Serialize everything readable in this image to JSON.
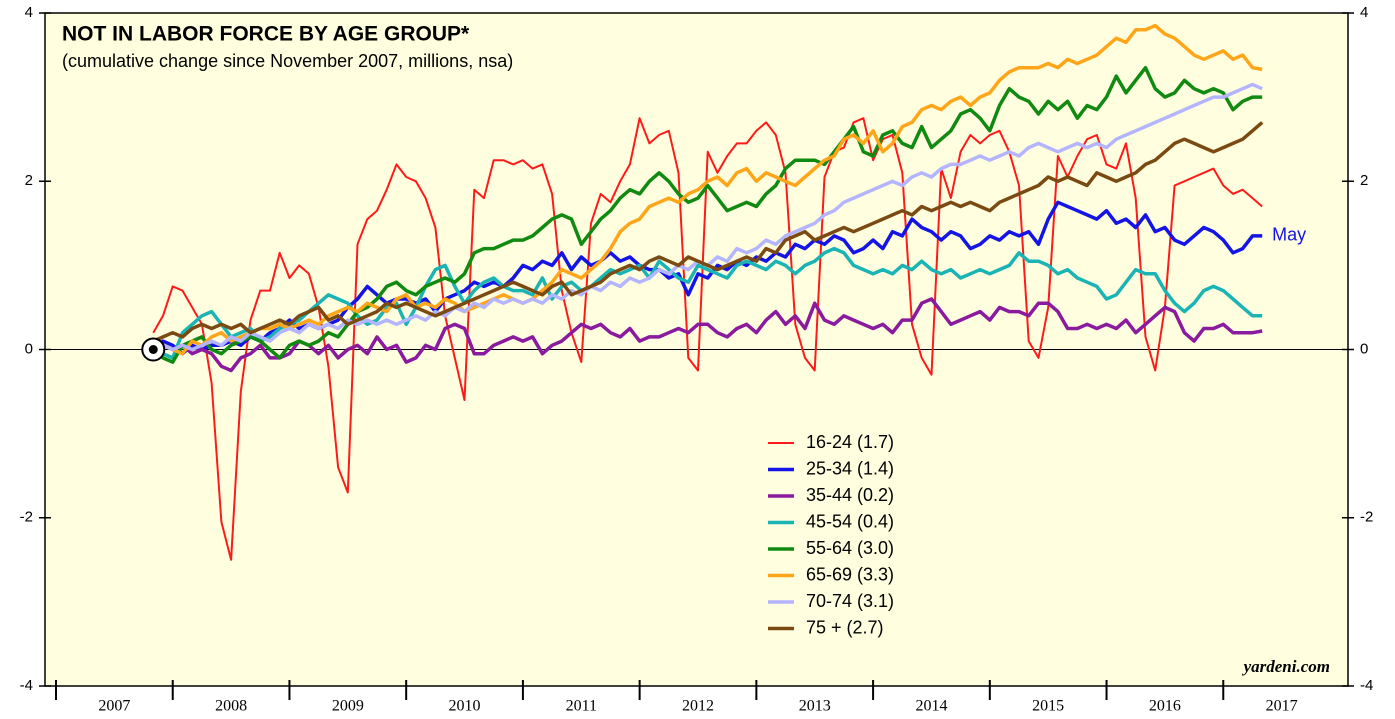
{
  "chart_data": {
    "type": "line",
    "title": "NOT IN LABOR FORCE BY AGE GROUP*",
    "subtitle": "(cumulative change since November 2007, millions, nsa)",
    "source": "yardeni.com",
    "annotation": "May",
    "legend": "lower center",
    "xlim": [
      "2007-01",
      "2018-01"
    ],
    "xticks": [
      2007,
      2008,
      2009,
      2010,
      2011,
      2012,
      2013,
      2014,
      2015,
      2016,
      2017
    ],
    "ylim": [
      -4,
      4
    ],
    "yticks": [
      -4,
      -2,
      0,
      2,
      4
    ],
    "x": [
      "2007-11",
      "2007-12",
      "2008-01",
      "2008-02",
      "2008-03",
      "2008-04",
      "2008-05",
      "2008-06",
      "2008-07",
      "2008-08",
      "2008-09",
      "2008-10",
      "2008-11",
      "2008-12",
      "2009-01",
      "2009-02",
      "2009-03",
      "2009-04",
      "2009-05",
      "2009-06",
      "2009-07",
      "2009-08",
      "2009-09",
      "2009-10",
      "2009-11",
      "2009-12",
      "2010-01",
      "2010-02",
      "2010-03",
      "2010-04",
      "2010-05",
      "2010-06",
      "2010-07",
      "2010-08",
      "2010-09",
      "2010-10",
      "2010-11",
      "2010-12",
      "2011-01",
      "2011-02",
      "2011-03",
      "2011-04",
      "2011-05",
      "2011-06",
      "2011-07",
      "2011-08",
      "2011-09",
      "2011-10",
      "2011-11",
      "2011-12",
      "2012-01",
      "2012-02",
      "2012-03",
      "2012-04",
      "2012-05",
      "2012-06",
      "2012-07",
      "2012-08",
      "2012-09",
      "2012-10",
      "2012-11",
      "2012-12",
      "2013-01",
      "2013-02",
      "2013-03",
      "2013-04",
      "2013-05",
      "2013-06",
      "2013-07",
      "2013-08",
      "2013-09",
      "2013-10",
      "2013-11",
      "2013-12",
      "2014-01",
      "2014-02",
      "2014-03",
      "2014-04",
      "2014-05",
      "2014-06",
      "2014-07",
      "2014-08",
      "2014-09",
      "2014-10",
      "2014-11",
      "2014-12",
      "2015-01",
      "2015-02",
      "2015-03",
      "2015-04",
      "2015-05",
      "2015-06",
      "2015-07",
      "2015-08",
      "2015-09",
      "2015-10",
      "2015-11",
      "2015-12",
      "2016-01",
      "2016-02",
      "2016-03",
      "2016-04",
      "2016-05",
      "2016-06",
      "2016-07",
      "2016-08",
      "2016-09",
      "2016-10",
      "2016-11",
      "2016-12",
      "2017-01",
      "2017-02",
      "2017-03",
      "2017-04",
      "2017-05"
    ],
    "series": [
      {
        "name": "16-24 (1.7)",
        "color": "#ff1a1a",
        "values": [
          0.2,
          0.4,
          0.75,
          0.7,
          0.5,
          0.3,
          -0.4,
          -2.05,
          -2.5,
          -0.5,
          0.35,
          0.7,
          0.7,
          1.15,
          0.85,
          1.0,
          0.9,
          0.5,
          -0.2,
          -1.4,
          -1.7,
          1.25,
          1.55,
          1.65,
          1.9,
          2.2,
          2.05,
          2.0,
          1.8,
          1.45,
          0.4,
          -0.1,
          -0.6,
          1.9,
          1.8,
          2.25,
          2.25,
          2.2,
          2.25,
          2.15,
          2.2,
          1.85,
          0.7,
          0.2,
          -0.15,
          1.5,
          1.85,
          1.75,
          2.0,
          2.2,
          2.75,
          2.45,
          2.55,
          2.6,
          2.1,
          -0.1,
          -0.25,
          2.35,
          2.1,
          2.3,
          2.45,
          2.45,
          2.6,
          2.7,
          2.55,
          2.1,
          0.3,
          -0.1,
          -0.25,
          2.05,
          2.35,
          2.4,
          2.7,
          2.75,
          2.25,
          2.5,
          2.55,
          2.1,
          0.3,
          -0.1,
          -0.3,
          2.15,
          1.8,
          2.35,
          2.55,
          2.45,
          2.55,
          2.6,
          2.35,
          1.95,
          0.1,
          -0.1,
          0.5,
          2.3,
          2.05,
          2.3,
          2.5,
          2.55,
          2.2,
          2.15,
          2.45,
          1.8,
          0.15,
          -0.25,
          0.5,
          1.95,
          2.0,
          2.05,
          2.1,
          2.15,
          1.95,
          1.85,
          1.9,
          1.8,
          1.7
        ]
      },
      {
        "name": "25-34 (1.4)",
        "color": "#1414e6",
        "values": [
          0,
          0.1,
          0.05,
          -0.05,
          0.05,
          0.0,
          0.05,
          0.05,
          0.1,
          0.05,
          0.15,
          0.1,
          0.2,
          0.25,
          0.35,
          0.25,
          0.3,
          0.25,
          0.3,
          0.35,
          0.5,
          0.6,
          0.75,
          0.65,
          0.55,
          0.6,
          0.6,
          0.55,
          0.6,
          0.45,
          0.6,
          0.65,
          0.7,
          0.8,
          0.75,
          0.8,
          0.75,
          0.85,
          1.0,
          0.95,
          1.05,
          1.0,
          1.15,
          0.95,
          1.1,
          1.0,
          1.05,
          1.15,
          1.05,
          1.1,
          1.0,
          0.95,
          0.95,
          0.85,
          0.9,
          0.65,
          0.9,
          0.85,
          1.0,
          0.95,
          1.05,
          1.0,
          1.1,
          1.05,
          1.15,
          1.1,
          1.25,
          1.2,
          1.3,
          1.25,
          1.35,
          1.3,
          1.15,
          1.2,
          1.3,
          1.2,
          1.4,
          1.35,
          1.55,
          1.45,
          1.4,
          1.3,
          1.4,
          1.35,
          1.2,
          1.25,
          1.35,
          1.3,
          1.4,
          1.35,
          1.4,
          1.25,
          1.55,
          1.75,
          1.7,
          1.65,
          1.6,
          1.55,
          1.65,
          1.5,
          1.55,
          1.45,
          1.6,
          1.4,
          1.45,
          1.3,
          1.25,
          1.35,
          1.45,
          1.4,
          1.3,
          1.15,
          1.2,
          1.35,
          1.35
        ]
      },
      {
        "name": "35-44 (0.2)",
        "color": "#8a1a9e",
        "values": [
          0.1,
          0.05,
          0.0,
          0.05,
          -0.05,
          0.0,
          -0.05,
          -0.2,
          -0.25,
          -0.1,
          -0.05,
          0.05,
          -0.1,
          -0.1,
          -0.05,
          0.1,
          0.05,
          -0.05,
          0.05,
          -0.1,
          0.0,
          0.05,
          -0.05,
          0.15,
          0.0,
          0.05,
          -0.15,
          -0.1,
          0.05,
          0.0,
          0.25,
          0.3,
          0.25,
          -0.05,
          -0.05,
          0.05,
          0.1,
          0.15,
          0.1,
          0.15,
          -0.05,
          0.05,
          0.1,
          0.2,
          0.3,
          0.25,
          0.3,
          0.2,
          0.15,
          0.25,
          0.1,
          0.15,
          0.15,
          0.2,
          0.25,
          0.2,
          0.3,
          0.3,
          0.2,
          0.15,
          0.25,
          0.3,
          0.2,
          0.35,
          0.45,
          0.3,
          0.4,
          0.25,
          0.55,
          0.35,
          0.3,
          0.4,
          0.35,
          0.3,
          0.25,
          0.3,
          0.2,
          0.35,
          0.35,
          0.55,
          0.6,
          0.45,
          0.3,
          0.35,
          0.4,
          0.45,
          0.35,
          0.5,
          0.45,
          0.45,
          0.4,
          0.55,
          0.55,
          0.45,
          0.25,
          0.25,
          0.3,
          0.25,
          0.3,
          0.25,
          0.35,
          0.2,
          0.3,
          0.4,
          0.5,
          0.45,
          0.2,
          0.1,
          0.25,
          0.25,
          0.3,
          0.2,
          0.2,
          0.2,
          0.22
        ]
      },
      {
        "name": "45-54 (0.4)",
        "color": "#1ab4b4",
        "values": [
          0.1,
          -0.05,
          -0.1,
          0.2,
          0.3,
          0.4,
          0.45,
          0.3,
          0.15,
          0.2,
          0.25,
          0.1,
          0.15,
          0.25,
          0.3,
          0.35,
          0.45,
          0.55,
          0.65,
          0.6,
          0.55,
          0.4,
          0.3,
          0.35,
          0.5,
          0.55,
          0.3,
          0.5,
          0.75,
          0.95,
          1.0,
          0.75,
          0.55,
          0.7,
          0.8,
          0.85,
          0.75,
          0.7,
          0.7,
          0.65,
          0.85,
          0.6,
          0.75,
          0.8,
          0.7,
          0.75,
          0.85,
          0.95,
          0.9,
          0.95,
          1.0,
          0.85,
          1.05,
          0.95,
          0.85,
          0.8,
          1.0,
          0.95,
          0.9,
          0.85,
          1.0,
          1.05,
          1.0,
          0.95,
          1.05,
          1.0,
          0.9,
          1.0,
          1.05,
          1.15,
          1.2,
          1.15,
          1.0,
          0.95,
          0.9,
          0.95,
          0.9,
          1.0,
          0.95,
          1.05,
          0.95,
          0.9,
          0.95,
          0.85,
          0.9,
          0.95,
          0.9,
          0.95,
          1.0,
          1.15,
          1.05,
          1.05,
          1.0,
          0.9,
          0.95,
          0.85,
          0.8,
          0.75,
          0.6,
          0.65,
          0.8,
          0.95,
          0.9,
          0.9,
          0.7,
          0.55,
          0.45,
          0.55,
          0.7,
          0.75,
          0.7,
          0.6,
          0.5,
          0.4,
          0.4
        ]
      },
      {
        "name": "55-64 (3.0)",
        "color": "#108a10",
        "values": [
          0,
          -0.1,
          -0.15,
          0.05,
          0.1,
          0.15,
          0.0,
          -0.05,
          0.05,
          0.1,
          0.15,
          0.1,
          0.0,
          -0.1,
          0.05,
          0.1,
          0.05,
          0.1,
          0.2,
          0.15,
          0.3,
          0.45,
          0.5,
          0.6,
          0.75,
          0.8,
          0.7,
          0.65,
          0.75,
          0.8,
          0.85,
          0.8,
          0.9,
          1.15,
          1.2,
          1.2,
          1.25,
          1.3,
          1.3,
          1.35,
          1.45,
          1.55,
          1.6,
          1.55,
          1.25,
          1.4,
          1.55,
          1.65,
          1.8,
          1.9,
          1.85,
          2.0,
          2.1,
          2.0,
          1.85,
          1.75,
          1.8,
          1.95,
          1.8,
          1.65,
          1.7,
          1.75,
          1.7,
          1.85,
          1.95,
          2.15,
          2.25,
          2.25,
          2.25,
          2.2,
          2.35,
          2.5,
          2.65,
          2.35,
          2.3,
          2.55,
          2.6,
          2.45,
          2.4,
          2.65,
          2.4,
          2.5,
          2.6,
          2.8,
          2.85,
          2.75,
          2.6,
          2.9,
          3.1,
          3.0,
          2.95,
          2.8,
          2.95,
          2.85,
          2.95,
          2.75,
          2.9,
          2.85,
          3.0,
          3.25,
          3.05,
          3.2,
          3.35,
          3.1,
          3.0,
          3.05,
          3.2,
          3.1,
          3.05,
          3.1,
          3.05,
          2.85,
          2.95,
          3.0,
          3.0
        ]
      },
      {
        "name": "65-69 (3.3)",
        "color": "#ffa51a",
        "values": [
          0.1,
          0.05,
          0.0,
          -0.05,
          0.1,
          0.05,
          0.15,
          0.2,
          0.1,
          0.15,
          0.2,
          0.25,
          0.25,
          0.3,
          0.25,
          0.3,
          0.35,
          0.3,
          0.4,
          0.45,
          0.5,
          0.45,
          0.55,
          0.5,
          0.45,
          0.6,
          0.65,
          0.5,
          0.55,
          0.5,
          0.6,
          0.55,
          0.45,
          0.5,
          0.55,
          0.6,
          0.65,
          0.6,
          0.55,
          0.6,
          0.7,
          0.8,
          0.95,
          0.9,
          0.85,
          0.95,
          1.05,
          1.2,
          1.4,
          1.5,
          1.55,
          1.7,
          1.75,
          1.8,
          1.75,
          1.85,
          1.9,
          2.0,
          2.05,
          1.95,
          2.1,
          2.15,
          2.0,
          2.1,
          2.05,
          2.0,
          1.95,
          2.05,
          2.15,
          2.25,
          2.3,
          2.5,
          2.55,
          2.45,
          2.6,
          2.35,
          2.45,
          2.65,
          2.7,
          2.85,
          2.9,
          2.85,
          2.95,
          3.0,
          2.9,
          3.0,
          3.05,
          3.2,
          3.3,
          3.35,
          3.35,
          3.35,
          3.4,
          3.35,
          3.45,
          3.4,
          3.45,
          3.5,
          3.6,
          3.7,
          3.65,
          3.8,
          3.8,
          3.85,
          3.75,
          3.7,
          3.6,
          3.5,
          3.45,
          3.5,
          3.55,
          3.45,
          3.5,
          3.35,
          3.33
        ]
      },
      {
        "name": "70-74 (3.1)",
        "color": "#b4b4ff",
        "values": [
          0.1,
          0.05,
          0.0,
          0.05,
          0.0,
          0.05,
          0.1,
          0.05,
          0.15,
          0.1,
          0.2,
          0.15,
          0.1,
          0.2,
          0.25,
          0.2,
          0.3,
          0.25,
          0.3,
          0.25,
          0.35,
          0.3,
          0.35,
          0.3,
          0.35,
          0.3,
          0.35,
          0.4,
          0.35,
          0.45,
          0.4,
          0.5,
          0.45,
          0.55,
          0.5,
          0.6,
          0.55,
          0.6,
          0.55,
          0.6,
          0.55,
          0.65,
          0.6,
          0.7,
          0.65,
          0.75,
          0.7,
          0.8,
          0.75,
          0.85,
          0.8,
          0.85,
          0.95,
          0.9,
          1.0,
          0.95,
          1.05,
          1.0,
          1.1,
          1.05,
          1.2,
          1.15,
          1.2,
          1.3,
          1.25,
          1.35,
          1.4,
          1.45,
          1.5,
          1.6,
          1.65,
          1.75,
          1.8,
          1.85,
          1.9,
          1.95,
          2.0,
          1.95,
          2.05,
          2.1,
          2.05,
          2.15,
          2.2,
          2.2,
          2.25,
          2.3,
          2.25,
          2.3,
          2.35,
          2.3,
          2.4,
          2.45,
          2.4,
          2.35,
          2.4,
          2.45,
          2.4,
          2.45,
          2.4,
          2.5,
          2.55,
          2.6,
          2.65,
          2.7,
          2.75,
          2.8,
          2.85,
          2.9,
          2.95,
          3.0,
          3.0,
          3.05,
          3.1,
          3.15,
          3.1
        ]
      },
      {
        "name": "75 + (2.7)",
        "color": "#7a4a12",
        "values": [
          0.1,
          0.15,
          0.2,
          0.15,
          0.25,
          0.3,
          0.25,
          0.3,
          0.25,
          0.3,
          0.2,
          0.25,
          0.3,
          0.35,
          0.3,
          0.4,
          0.45,
          0.5,
          0.35,
          0.4,
          0.3,
          0.35,
          0.4,
          0.45,
          0.55,
          0.5,
          0.55,
          0.5,
          0.45,
          0.4,
          0.45,
          0.5,
          0.55,
          0.6,
          0.65,
          0.7,
          0.75,
          0.8,
          0.75,
          0.7,
          0.65,
          0.75,
          0.8,
          0.65,
          0.7,
          0.75,
          0.8,
          0.9,
          0.95,
          1.0,
          0.95,
          1.05,
          1.1,
          1.05,
          1.0,
          1.1,
          1.05,
          1.0,
          0.95,
          1.0,
          1.05,
          1.1,
          1.05,
          1.2,
          1.15,
          1.3,
          1.35,
          1.4,
          1.3,
          1.35,
          1.4,
          1.45,
          1.4,
          1.45,
          1.5,
          1.55,
          1.6,
          1.65,
          1.6,
          1.7,
          1.65,
          1.7,
          1.75,
          1.7,
          1.75,
          1.7,
          1.65,
          1.75,
          1.8,
          1.85,
          1.9,
          1.95,
          2.05,
          2.0,
          2.05,
          2.0,
          1.95,
          2.1,
          2.05,
          2.0,
          2.05,
          2.1,
          2.2,
          2.25,
          2.35,
          2.45,
          2.5,
          2.45,
          2.4,
          2.35,
          2.4,
          2.45,
          2.5,
          2.6,
          2.7
        ]
      }
    ]
  }
}
